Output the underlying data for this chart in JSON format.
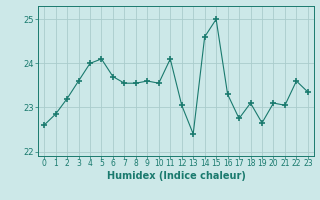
{
  "x": [
    0,
    1,
    2,
    3,
    4,
    5,
    6,
    7,
    8,
    9,
    10,
    11,
    12,
    13,
    14,
    15,
    16,
    17,
    18,
    19,
    20,
    21,
    22,
    23
  ],
  "y": [
    22.6,
    22.85,
    23.2,
    23.6,
    24.0,
    24.1,
    23.7,
    23.55,
    23.55,
    23.6,
    23.55,
    24.1,
    23.05,
    22.4,
    24.6,
    25.0,
    23.3,
    22.75,
    23.1,
    22.65,
    23.1,
    23.05,
    23.6,
    23.35
  ],
  "line_color": "#1a7a6e",
  "marker": "+",
  "bg_color": "#cce8e8",
  "grid_color": "#aacccc",
  "xlabel": "Humidex (Indice chaleur)",
  "ylim": [
    21.9,
    25.3
  ],
  "xlim": [
    -0.5,
    23.5
  ],
  "yticks": [
    22,
    23,
    24,
    25
  ],
  "xticks": [
    0,
    1,
    2,
    3,
    4,
    5,
    6,
    7,
    8,
    9,
    10,
    11,
    12,
    13,
    14,
    15,
    16,
    17,
    18,
    19,
    20,
    21,
    22,
    23
  ],
  "tick_color": "#1a7a6e",
  "label_color": "#1a7a6e",
  "font_size": 5.5,
  "xlabel_font_size": 7
}
